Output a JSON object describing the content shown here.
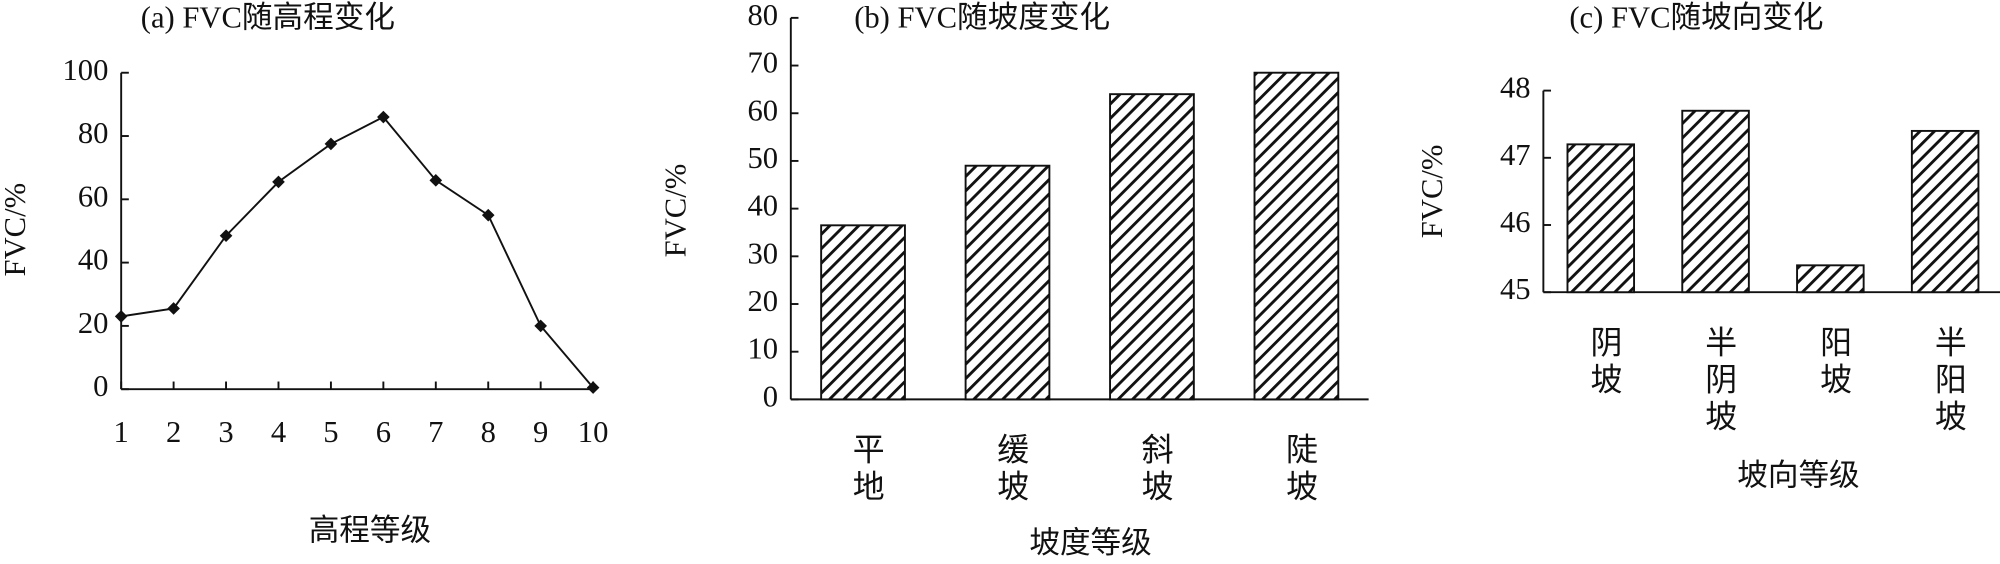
{
  "chart_data": [
    {
      "type": "line",
      "title": "(a) FVC随高程变化",
      "x_label": "高程等级",
      "y_label": "FVC/%",
      "x": [
        1,
        2,
        3,
        4,
        5,
        6,
        7,
        8,
        9,
        10
      ],
      "values": [
        23,
        25.5,
        48.5,
        65.5,
        77.5,
        86,
        66,
        55,
        20,
        0.5
      ],
      "color": "#111111",
      "xlim": [
        1,
        10
      ],
      "xticks": [
        1,
        2,
        3,
        4,
        5,
        6,
        7,
        8,
        9,
        10
      ],
      "ylim": [
        0,
        100
      ],
      "yticks": [
        0,
        20,
        40,
        60,
        80,
        100
      ]
    },
    {
      "type": "bar",
      "title": "(b) FVC随坡度变化",
      "x_label": "坡度等级",
      "y_label": "FVC/%",
      "categories": [
        "平地",
        "缓坡",
        "斜坡",
        "陡坡"
      ],
      "values": [
        36.5,
        49,
        64,
        68.5
      ],
      "color": "#111111",
      "ylim": [
        0,
        80
      ],
      "yticks": [
        0,
        10,
        20,
        30,
        40,
        50,
        60,
        70,
        80
      ]
    },
    {
      "type": "bar",
      "title": "(c) FVC随坡向变化",
      "x_label": "坡向等级",
      "y_label": "FVC/%",
      "categories": [
        "阴坡",
        "半阴坡",
        "阳坡",
        "半阳坡"
      ],
      "values": [
        47.2,
        47.7,
        45.4,
        47.4
      ],
      "color": "#111111",
      "ylim": [
        45,
        48
      ],
      "yticks": [
        45,
        46,
        47,
        48
      ]
    }
  ]
}
